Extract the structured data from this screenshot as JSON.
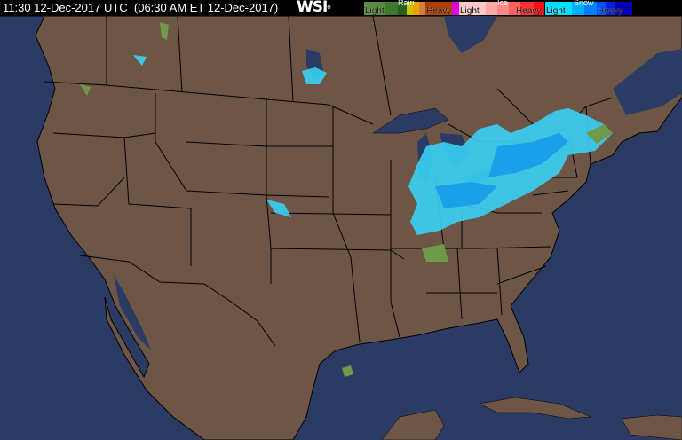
{
  "header": {
    "timestamp": "11:30 12-Dec-2017 UTC  (06:30 AM ET 12-Dec-2017)",
    "logo": "WSI"
  },
  "legend": {
    "rain": {
      "title": "Rain",
      "light": "Light",
      "heavy": "Heavy",
      "colors": [
        "#5a8a3c",
        "#3f7a2a",
        "#2d5e1e",
        "#c8c800",
        "#f0a000",
        "#d08040",
        "#b04000",
        "#e000e0"
      ]
    },
    "ice": {
      "title": "Ice",
      "light": "Light",
      "heavy": "Heavy",
      "colors": [
        "#ffc0c0",
        "#ffa0a0",
        "#ff8080",
        "#ff6060",
        "#ff4040",
        "#ff2020"
      ]
    },
    "snow": {
      "title": "Snow",
      "light": "Light",
      "heavy": "Heavy",
      "colors": [
        "#00e0ff",
        "#00b0ff",
        "#0080ff",
        "#0050ff",
        "#0020e0",
        "#0000b0"
      ]
    }
  },
  "map": {
    "ocean_color": "#2c3b63",
    "land_color": "#6e5646",
    "border_color": "#000000"
  }
}
